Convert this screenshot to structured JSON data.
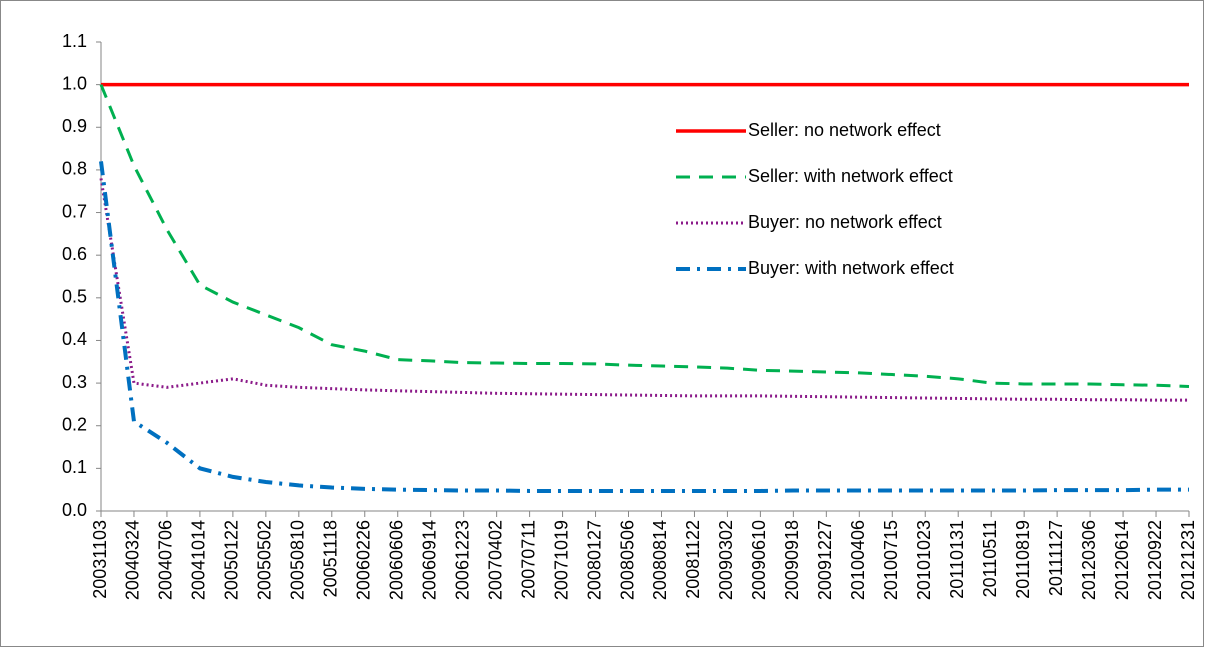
{
  "chart_data": {
    "type": "line",
    "categories": [
      "20031103",
      "20040324",
      "20040706",
      "20041014",
      "20050122",
      "20050502",
      "20050810",
      "20051118",
      "20060226",
      "20060606",
      "20060914",
      "20061223",
      "20070402",
      "20070711",
      "20071019",
      "20080127",
      "20080506",
      "20080814",
      "20081122",
      "20090302",
      "20090610",
      "20090918",
      "20091227",
      "20100406",
      "20100715",
      "20101023",
      "20110131",
      "20110511",
      "20110819",
      "20111127",
      "20120306",
      "20120614",
      "20120922",
      "20121231"
    ],
    "series": [
      {
        "name": "Seller: no network effect",
        "color": "#ff0000",
        "dash": "solid",
        "values": [
          1,
          1,
          1,
          1,
          1,
          1,
          1,
          1,
          1,
          1,
          1,
          1,
          1,
          1,
          1,
          1,
          1,
          1,
          1,
          1,
          1,
          1,
          1,
          1,
          1,
          1,
          1,
          1,
          1,
          1,
          1,
          1,
          1,
          1
        ]
      },
      {
        "name": "Seller: with network effect",
        "color": "#00b050",
        "dash": "dashed",
        "values": [
          1.0,
          0.81,
          0.66,
          0.53,
          0.49,
          0.46,
          0.43,
          0.39,
          0.375,
          0.355,
          0.352,
          0.348,
          0.347,
          0.346,
          0.346,
          0.345,
          0.342,
          0.34,
          0.338,
          0.335,
          0.33,
          0.328,
          0.326,
          0.324,
          0.32,
          0.316,
          0.31,
          0.3,
          0.298,
          0.298,
          0.298,
          0.296,
          0.295,
          0.292
        ]
      },
      {
        "name": "Buyer: no network effect",
        "color": "#8b1a89",
        "dash": "dotted",
        "values": [
          0.78,
          0.3,
          0.29,
          0.3,
          0.31,
          0.295,
          0.29,
          0.287,
          0.284,
          0.282,
          0.28,
          0.278,
          0.276,
          0.275,
          0.274,
          0.273,
          0.272,
          0.271,
          0.27,
          0.27,
          0.27,
          0.269,
          0.268,
          0.267,
          0.266,
          0.265,
          0.264,
          0.263,
          0.262,
          0.262,
          0.261,
          0.261,
          0.26,
          0.26
        ]
      },
      {
        "name": "Buyer: with network effect",
        "color": "#0070c0",
        "dash": "dashdot",
        "values": [
          0.82,
          0.21,
          0.16,
          0.1,
          0.08,
          0.068,
          0.06,
          0.055,
          0.052,
          0.05,
          0.049,
          0.048,
          0.048,
          0.047,
          0.047,
          0.047,
          0.047,
          0.047,
          0.047,
          0.047,
          0.047,
          0.048,
          0.048,
          0.048,
          0.048,
          0.048,
          0.048,
          0.048,
          0.048,
          0.049,
          0.049,
          0.049,
          0.05,
          0.05
        ]
      }
    ],
    "ylim": [
      0,
      1.1
    ],
    "yticks": [
      {
        "value": 0,
        "label": "0.0"
      },
      0.1,
      0.2,
      0.3,
      0.4,
      0.5,
      0.6,
      0.7,
      0.8,
      0.9,
      {
        "value": 1,
        "label": "1.0"
      },
      1.1
    ],
    "legend": "right"
  }
}
